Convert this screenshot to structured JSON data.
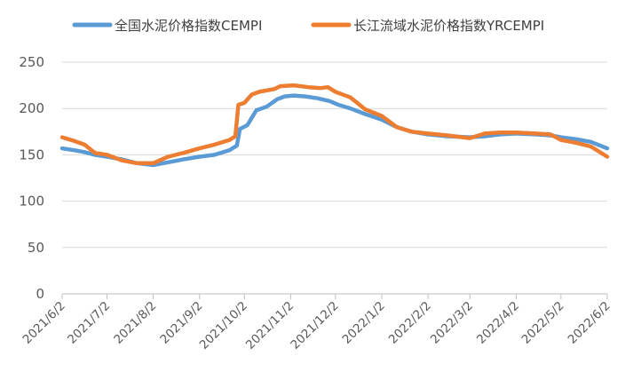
{
  "chart_data": {
    "type": "line",
    "title": "",
    "xlabel": "",
    "ylabel": "",
    "ylim": [
      0,
      250
    ],
    "yticks": [
      "0",
      "50",
      "100",
      "150",
      "200",
      "250"
    ],
    "x_ticks": [
      "2021/6/2",
      "2021/7/2",
      "2021/8/2",
      "2021/9/2",
      "2021/10/2",
      "2021/11/2",
      "2021/12/2",
      "2022/1/2",
      "2022/2/2",
      "2022/3/2",
      "2022/4/2",
      "2022/5/2",
      "2022/6/2"
    ],
    "grid": "horizontal",
    "legend_position": "top",
    "series": [
      {
        "name": "全国水泥价格指数CEMPI",
        "color": "#5B9BD5",
        "points": [
          [
            "2021/6/2",
            157
          ],
          [
            "2021/6/10",
            155
          ],
          [
            "2021/6/17",
            153
          ],
          [
            "2021/6/24",
            150
          ],
          [
            "2021/7/2",
            148
          ],
          [
            "2021/7/12",
            145
          ],
          [
            "2021/7/22",
            141
          ],
          [
            "2021/8/2",
            139
          ],
          [
            "2021/8/12",
            142
          ],
          [
            "2021/8/22",
            145
          ],
          [
            "2021/9/2",
            148
          ],
          [
            "2021/9/12",
            150
          ],
          [
            "2021/9/22",
            155
          ],
          [
            "2021/9/27",
            160
          ],
          [
            "2021/9/29",
            178
          ],
          [
            "2021/10/4",
            182
          ],
          [
            "2021/10/7",
            190
          ],
          [
            "2021/10/10",
            198
          ],
          [
            "2021/10/17",
            202
          ],
          [
            "2021/10/24",
            210
          ],
          [
            "2021/10/29",
            213
          ],
          [
            "2021/11/4",
            214
          ],
          [
            "2021/11/12",
            213
          ],
          [
            "2021/11/20",
            211
          ],
          [
            "2021/11/28",
            208
          ],
          [
            "2021/12/4",
            204
          ],
          [
            "2021/12/12",
            200
          ],
          [
            "2021/12/22",
            194
          ],
          [
            "2022/1/2",
            188
          ],
          [
            "2022/1/12",
            180
          ],
          [
            "2022/1/22",
            175
          ],
          [
            "2022/2/2",
            172
          ],
          [
            "2022/2/15",
            170
          ],
          [
            "2022/3/2",
            169
          ],
          [
            "2022/3/12",
            170
          ],
          [
            "2022/3/22",
            172
          ],
          [
            "2022/4/2",
            173
          ],
          [
            "2022/4/15",
            172
          ],
          [
            "2022/4/25",
            171
          ],
          [
            "2022/5/2",
            169
          ],
          [
            "2022/5/12",
            167
          ],
          [
            "2022/5/22",
            164
          ],
          [
            "2022/6/2",
            157
          ]
        ]
      },
      {
        "name": "长江流域水泥价格指数YRCEMPI",
        "color": "#ED7D31",
        "points": [
          [
            "2021/6/2",
            169
          ],
          [
            "2021/6/10",
            165
          ],
          [
            "2021/6/17",
            161
          ],
          [
            "2021/6/24",
            152
          ],
          [
            "2021/7/2",
            150
          ],
          [
            "2021/7/12",
            144
          ],
          [
            "2021/7/22",
            141
          ],
          [
            "2021/8/2",
            141
          ],
          [
            "2021/8/12",
            148
          ],
          [
            "2021/8/22",
            152
          ],
          [
            "2021/9/2",
            157
          ],
          [
            "2021/9/12",
            161
          ],
          [
            "2021/9/22",
            166
          ],
          [
            "2021/9/26",
            170
          ],
          [
            "2021/9/28",
            204
          ],
          [
            "2021/10/2",
            206
          ],
          [
            "2021/10/7",
            215
          ],
          [
            "2021/10/12",
            218
          ],
          [
            "2021/10/22",
            221
          ],
          [
            "2021/10/26",
            224
          ],
          [
            "2021/11/4",
            225
          ],
          [
            "2021/11/14",
            223
          ],
          [
            "2021/11/22",
            222
          ],
          [
            "2021/11/27",
            223
          ],
          [
            "2021/12/2",
            218
          ],
          [
            "2021/12/12",
            212
          ],
          [
            "2021/12/22",
            199
          ],
          [
            "2022/1/2",
            192
          ],
          [
            "2022/1/12",
            180
          ],
          [
            "2022/1/22",
            175
          ],
          [
            "2022/2/2",
            173
          ],
          [
            "2022/2/15",
            171
          ],
          [
            "2022/3/2",
            168
          ],
          [
            "2022/3/12",
            173
          ],
          [
            "2022/3/22",
            174
          ],
          [
            "2022/4/2",
            174
          ],
          [
            "2022/4/15",
            173
          ],
          [
            "2022/4/25",
            172
          ],
          [
            "2022/5/2",
            166
          ],
          [
            "2022/5/12",
            163
          ],
          [
            "2022/5/22",
            159
          ],
          [
            "2022/6/2",
            148
          ]
        ]
      }
    ]
  }
}
